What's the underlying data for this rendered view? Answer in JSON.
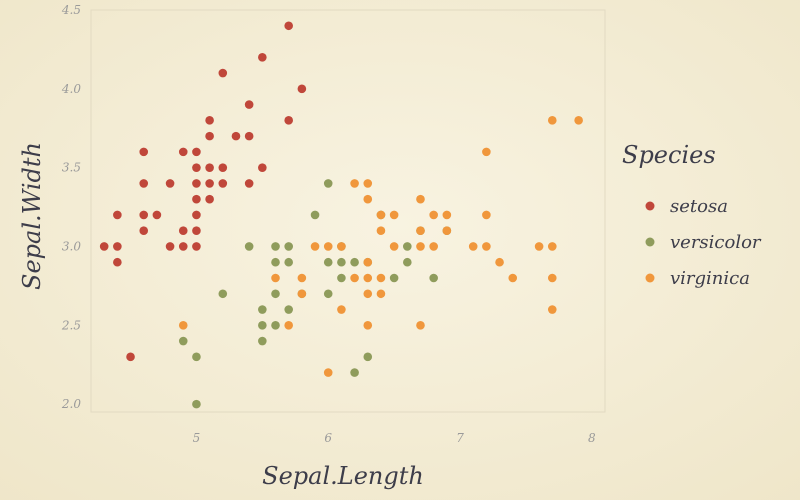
{
  "chart_data": {
    "type": "scatter",
    "title": "",
    "xlabel": "Sepal.Length",
    "ylabel": "Sepal.Width",
    "xlim": [
      4.2,
      8.1
    ],
    "ylim": [
      1.95,
      4.5
    ],
    "xticks": [
      5,
      6,
      7,
      8
    ],
    "yticks": [
      2.0,
      2.5,
      3.0,
      3.5,
      4.0,
      4.5
    ],
    "xtick_labels": [
      "5",
      "6",
      "7",
      "8"
    ],
    "ytick_labels": [
      "2.0",
      "2.5",
      "3.0",
      "3.5",
      "4.0",
      "4.5"
    ],
    "grid": false,
    "legend": {
      "title": "Species",
      "position": "right"
    },
    "series": [
      {
        "name": "setosa",
        "color": "#c0473a",
        "points": [
          [
            5.7,
            4.4
          ],
          [
            5.5,
            4.2
          ],
          [
            5.2,
            4.1
          ],
          [
            5.8,
            4.0
          ],
          [
            5.4,
            3.9
          ],
          [
            5.1,
            3.8
          ],
          [
            5.7,
            3.8
          ],
          [
            5.1,
            3.7
          ],
          [
            5.3,
            3.7
          ],
          [
            5.4,
            3.7
          ],
          [
            4.6,
            3.6
          ],
          [
            4.9,
            3.6
          ],
          [
            5.0,
            3.6
          ],
          [
            5.0,
            3.5
          ],
          [
            5.1,
            3.5
          ],
          [
            5.2,
            3.5
          ],
          [
            5.5,
            3.5
          ],
          [
            4.6,
            3.4
          ],
          [
            4.8,
            3.4
          ],
          [
            5.0,
            3.4
          ],
          [
            5.1,
            3.4
          ],
          [
            5.2,
            3.4
          ],
          [
            5.4,
            3.4
          ],
          [
            5.0,
            3.3
          ],
          [
            5.1,
            3.3
          ],
          [
            4.4,
            3.2
          ],
          [
            4.6,
            3.2
          ],
          [
            4.7,
            3.2
          ],
          [
            5.0,
            3.2
          ],
          [
            4.6,
            3.1
          ],
          [
            4.9,
            3.1
          ],
          [
            5.0,
            3.1
          ],
          [
            4.3,
            3.0
          ],
          [
            4.4,
            3.0
          ],
          [
            4.8,
            3.0
          ],
          [
            4.9,
            3.0
          ],
          [
            5.0,
            3.0
          ],
          [
            4.4,
            2.9
          ],
          [
            4.5,
            2.3
          ]
        ]
      },
      {
        "name": "versicolor",
        "color": "#8f9c5c",
        "points": [
          [
            6.0,
            3.4
          ],
          [
            5.9,
            3.2
          ],
          [
            6.4,
            3.2
          ],
          [
            6.7,
            3.1
          ],
          [
            6.9,
            3.1
          ],
          [
            5.4,
            3.0
          ],
          [
            5.6,
            3.0
          ],
          [
            5.7,
            3.0
          ],
          [
            6.1,
            3.0
          ],
          [
            6.6,
            3.0
          ],
          [
            5.6,
            2.9
          ],
          [
            5.7,
            2.9
          ],
          [
            6.0,
            2.9
          ],
          [
            6.1,
            2.9
          ],
          [
            6.2,
            2.9
          ],
          [
            6.3,
            2.9
          ],
          [
            6.6,
            2.9
          ],
          [
            6.1,
            2.8
          ],
          [
            6.5,
            2.8
          ],
          [
            6.8,
            2.8
          ],
          [
            5.2,
            2.7
          ],
          [
            5.6,
            2.7
          ],
          [
            5.8,
            2.7
          ],
          [
            6.0,
            2.7
          ],
          [
            5.5,
            2.6
          ],
          [
            5.7,
            2.6
          ],
          [
            5.5,
            2.5
          ],
          [
            5.6,
            2.5
          ],
          [
            4.9,
            2.4
          ],
          [
            5.5,
            2.4
          ],
          [
            5.0,
            2.3
          ],
          [
            6.3,
            2.3
          ],
          [
            6.2,
            2.2
          ],
          [
            5.0,
            2.0
          ]
        ]
      },
      {
        "name": "virginica",
        "color": "#f0973c",
        "points": [
          [
            7.7,
            3.8
          ],
          [
            7.9,
            3.8
          ],
          [
            7.2,
            3.6
          ],
          [
            6.2,
            3.4
          ],
          [
            6.3,
            3.4
          ],
          [
            6.3,
            3.3
          ],
          [
            6.7,
            3.3
          ],
          [
            6.4,
            3.2
          ],
          [
            6.5,
            3.2
          ],
          [
            6.8,
            3.2
          ],
          [
            6.9,
            3.2
          ],
          [
            7.2,
            3.2
          ],
          [
            6.4,
            3.1
          ],
          [
            6.7,
            3.1
          ],
          [
            6.9,
            3.1
          ],
          [
            5.9,
            3.0
          ],
          [
            6.0,
            3.0
          ],
          [
            6.1,
            3.0
          ],
          [
            6.5,
            3.0
          ],
          [
            6.7,
            3.0
          ],
          [
            6.8,
            3.0
          ],
          [
            7.1,
            3.0
          ],
          [
            7.2,
            3.0
          ],
          [
            7.6,
            3.0
          ],
          [
            7.7,
            3.0
          ],
          [
            5.8,
            2.8
          ],
          [
            6.2,
            2.8
          ],
          [
            6.3,
            2.8
          ],
          [
            6.4,
            2.8
          ],
          [
            7.4,
            2.8
          ],
          [
            7.7,
            2.8
          ],
          [
            5.6,
            2.8
          ],
          [
            6.3,
            2.9
          ],
          [
            7.3,
            2.9
          ],
          [
            5.8,
            2.7
          ],
          [
            6.3,
            2.7
          ],
          [
            6.4,
            2.7
          ],
          [
            7.7,
            2.6
          ],
          [
            6.1,
            2.6
          ],
          [
            4.9,
            2.5
          ],
          [
            5.7,
            2.5
          ],
          [
            6.3,
            2.5
          ],
          [
            6.7,
            2.5
          ],
          [
            6.0,
            2.2
          ]
        ]
      }
    ]
  }
}
